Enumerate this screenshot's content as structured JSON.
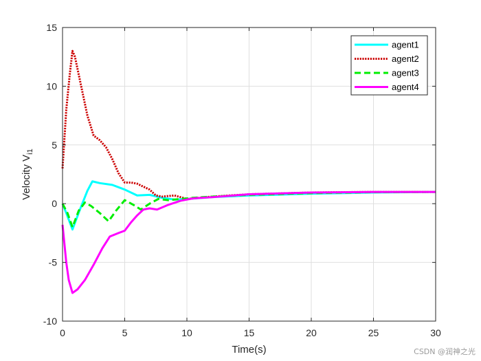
{
  "chart_data": {
    "type": "line",
    "title": "",
    "xlabel": "Time(s)",
    "ylabel_main": "Velocity V",
    "ylabel_sub": "i1",
    "xlim": [
      0,
      30
    ],
    "ylim": [
      -10,
      15
    ],
    "xticks": [
      0,
      5,
      10,
      15,
      20,
      25,
      30
    ],
    "yticks": [
      -10,
      -5,
      0,
      5,
      10,
      15
    ],
    "xtick_labels": [
      "0",
      "5",
      "10",
      "15",
      "20",
      "25",
      "30"
    ],
    "ytick_labels": [
      "-10",
      "-5",
      "0",
      "5",
      "10",
      "15"
    ],
    "grid": true,
    "legend_position": "top-right",
    "series": [
      {
        "name": "agent1",
        "color": "#00FFFF",
        "style": "solid",
        "points": [
          [
            0,
            0
          ],
          [
            0.3,
            -0.8
          ],
          [
            0.8,
            -2.2
          ],
          [
            1.4,
            -0.5
          ],
          [
            2.0,
            1.1
          ],
          [
            2.4,
            1.9
          ],
          [
            3,
            1.75
          ],
          [
            4,
            1.6
          ],
          [
            5,
            1.2
          ],
          [
            6,
            0.7
          ],
          [
            7,
            0.75
          ],
          [
            8,
            0.5
          ],
          [
            9,
            0.35
          ],
          [
            10,
            0.4
          ],
          [
            12,
            0.55
          ],
          [
            15,
            0.7
          ],
          [
            20,
            0.85
          ],
          [
            25,
            0.95
          ],
          [
            30,
            1.0
          ]
        ]
      },
      {
        "name": "agent2",
        "color": "#CC0000",
        "style": "dotted",
        "points": [
          [
            0,
            3
          ],
          [
            0.3,
            8
          ],
          [
            0.6,
            11.2
          ],
          [
            0.8,
            13
          ],
          [
            1.0,
            12.5
          ],
          [
            1.5,
            10
          ],
          [
            2.0,
            7.5
          ],
          [
            2.5,
            5.8
          ],
          [
            3.0,
            5.4
          ],
          [
            3.5,
            4.8
          ],
          [
            4.0,
            3.8
          ],
          [
            4.5,
            2.6
          ],
          [
            5.0,
            1.8
          ],
          [
            5.5,
            1.8
          ],
          [
            6.0,
            1.7
          ],
          [
            7.0,
            1.2
          ],
          [
            7.5,
            0.7
          ],
          [
            8,
            0.6
          ],
          [
            9,
            0.7
          ],
          [
            10,
            0.4
          ],
          [
            11,
            0.5
          ],
          [
            12,
            0.6
          ],
          [
            15,
            0.8
          ],
          [
            20,
            0.95
          ],
          [
            25,
            1.0
          ],
          [
            30,
            1.0
          ]
        ]
      },
      {
        "name": "agent3",
        "color": "#00EE00",
        "style": "dashed",
        "points": [
          [
            0,
            0
          ],
          [
            0.4,
            -0.8
          ],
          [
            0.8,
            -2.0
          ],
          [
            1.3,
            -0.6
          ],
          [
            1.8,
            0.1
          ],
          [
            2.3,
            -0.2
          ],
          [
            3,
            -0.8
          ],
          [
            3.7,
            -1.5
          ],
          [
            4.3,
            -0.6
          ],
          [
            5,
            0.3
          ],
          [
            5.7,
            -0.1
          ],
          [
            6.3,
            -0.5
          ],
          [
            7,
            0.0
          ],
          [
            7.7,
            0.4
          ],
          [
            8.5,
            0.3
          ],
          [
            9.5,
            0.4
          ],
          [
            10.5,
            0.5
          ],
          [
            12,
            0.6
          ],
          [
            15,
            0.75
          ],
          [
            20,
            0.9
          ],
          [
            25,
            0.98
          ],
          [
            30,
            1.0
          ]
        ]
      },
      {
        "name": "agent4",
        "color": "#FF00FF",
        "style": "solid",
        "points": [
          [
            0,
            -1.8
          ],
          [
            0.3,
            -5
          ],
          [
            0.5,
            -6.5
          ],
          [
            0.8,
            -7.6
          ],
          [
            1.2,
            -7.3
          ],
          [
            1.8,
            -6.5
          ],
          [
            2.5,
            -5.2
          ],
          [
            3.2,
            -3.8
          ],
          [
            3.8,
            -2.8
          ],
          [
            4.5,
            -2.5
          ],
          [
            5,
            -2.3
          ],
          [
            5.5,
            -1.6
          ],
          [
            6,
            -1
          ],
          [
            6.5,
            -0.5
          ],
          [
            7,
            -0.4
          ],
          [
            7.6,
            -0.5
          ],
          [
            8.5,
            -0.1
          ],
          [
            9.5,
            0.25
          ],
          [
            10.5,
            0.45
          ],
          [
            12,
            0.55
          ],
          [
            15,
            0.8
          ],
          [
            20,
            0.95
          ],
          [
            25,
            1.0
          ],
          [
            30,
            1.0
          ]
        ]
      }
    ]
  },
  "watermark": "CSDN @润神之光"
}
